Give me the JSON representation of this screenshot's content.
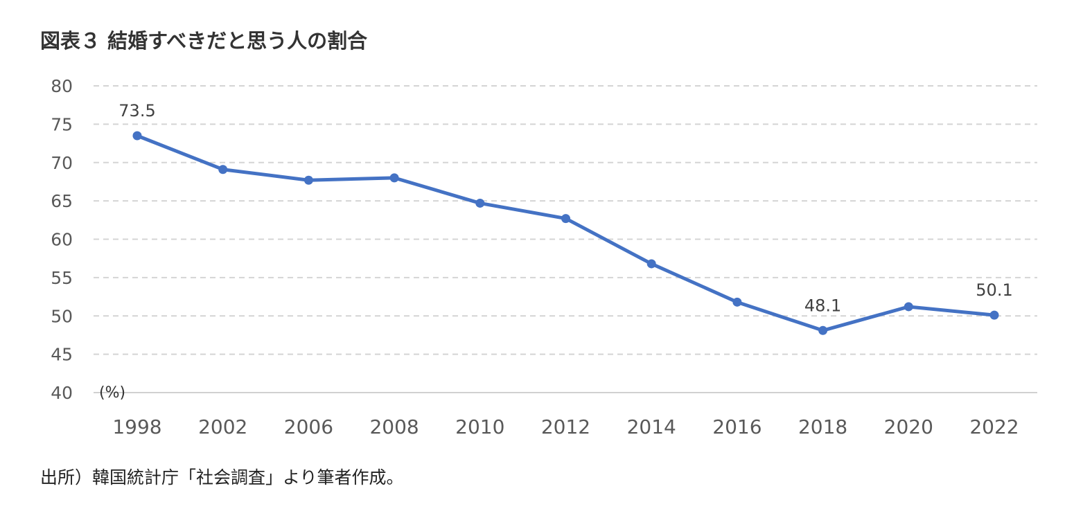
{
  "title": "図表３ 結婚すべきだと思う人の割合",
  "source": "出所）韓国統計庁「社会調査」より筆者作成。",
  "chart_data": {
    "type": "line",
    "title": "図表３ 結婚すべきだと思う人の割合",
    "xlabel": "",
    "ylabel": "(%)",
    "ylim": [
      40,
      80
    ],
    "yticks": [
      40,
      45,
      50,
      55,
      60,
      65,
      70,
      75,
      80
    ],
    "grid": true,
    "categories": [
      "1998",
      "2002",
      "2006",
      "2008",
      "2010",
      "2012",
      "2014",
      "2016",
      "2018",
      "2020",
      "2022"
    ],
    "series": [
      {
        "name": "結婚すべきだと思う人の割合",
        "color": "#4472C4",
        "values": [
          73.5,
          69.1,
          67.7,
          68.0,
          64.7,
          62.7,
          56.8,
          51.8,
          48.1,
          51.2,
          50.1
        ]
      }
    ],
    "data_labels": [
      {
        "index": 0,
        "text": "73.5"
      },
      {
        "index": 8,
        "text": "48.1"
      },
      {
        "index": 10,
        "text": "50.1"
      }
    ],
    "unit_label": "(%)"
  }
}
